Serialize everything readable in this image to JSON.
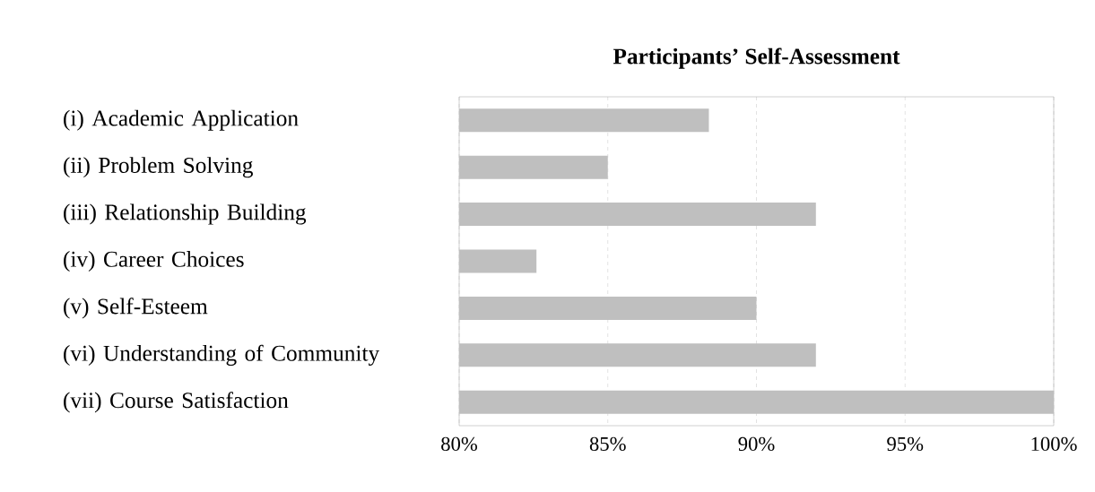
{
  "chart_data": {
    "type": "bar",
    "orientation": "horizontal",
    "title": "Participants’ Self-Assessment",
    "categories": [
      "(i)    Academic Application",
      "(ii)   Problem Solving",
      "(iii)  Relationship Building",
      "(iv)  Career Choices",
      "(v)    Self-Esteem",
      "(vi)  Understanding of Community",
      "(vii) Course Satisfaction"
    ],
    "values": [
      88.4,
      85,
      92,
      82.6,
      90,
      92,
      100
    ],
    "color": "#bfbfbf",
    "xlim": [
      80,
      100
    ],
    "xticks": [
      {
        "value": 80,
        "label": "80%"
      },
      {
        "value": 85,
        "label": "85%"
      },
      {
        "value": 90,
        "label": "90%"
      },
      {
        "value": 95,
        "label": "95%"
      },
      {
        "value": 100,
        "label": "100%"
      }
    ],
    "grid": "x"
  }
}
